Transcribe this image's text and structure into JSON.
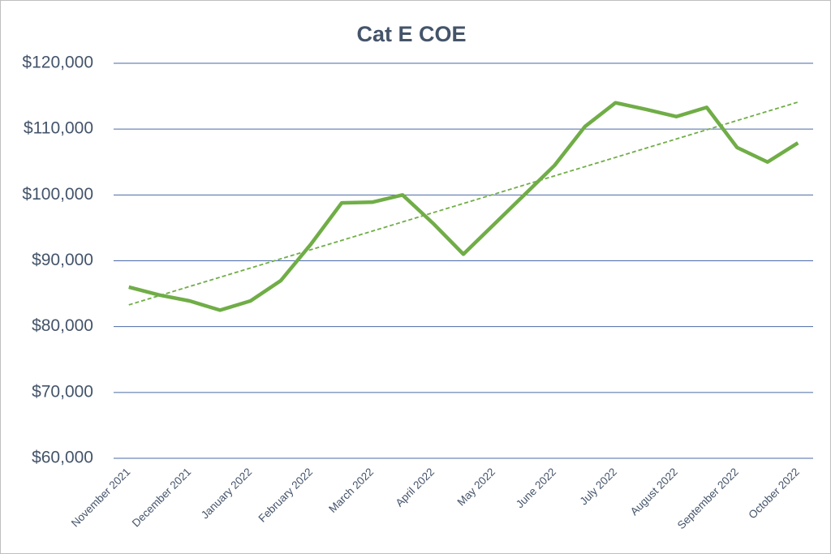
{
  "chart_data": {
    "type": "line",
    "title": "Cat E COE",
    "categories": [
      "November 2021",
      null,
      "December 2021",
      null,
      "January 2022",
      null,
      "February 2022",
      null,
      "March 2022",
      null,
      "April 2022",
      null,
      "May 2022",
      null,
      "June 2022",
      null,
      "July 2022",
      null,
      "August 2022",
      null,
      "September 2022",
      null,
      "October 2022"
    ],
    "series": [
      {
        "name": "Cat E COE",
        "color": "#70ad47",
        "values": [
          86000,
          84800,
          83900,
          82500,
          83900,
          87000,
          92600,
          98800,
          98900,
          100000,
          95700,
          91000,
          95500,
          100000,
          104500,
          110400,
          114000,
          113000,
          111900,
          113300,
          107200,
          105000,
          107900
        ]
      }
    ],
    "trendline": {
      "color": "#70ad47",
      "values": [
        83300,
        114100
      ]
    },
    "ylim": [
      60000,
      120000
    ],
    "yticks": [
      {
        "value": 60000,
        "label": "$60,000"
      },
      {
        "value": 70000,
        "label": "$70,000"
      },
      {
        "value": 80000,
        "label": "$80,000"
      },
      {
        "value": 90000,
        "label": "$90,000"
      },
      {
        "value": 100000,
        "label": "$100,000"
      },
      {
        "value": 110000,
        "label": "$110,000"
      },
      {
        "value": 120000,
        "label": "$120,000"
      }
    ],
    "grid": true
  }
}
